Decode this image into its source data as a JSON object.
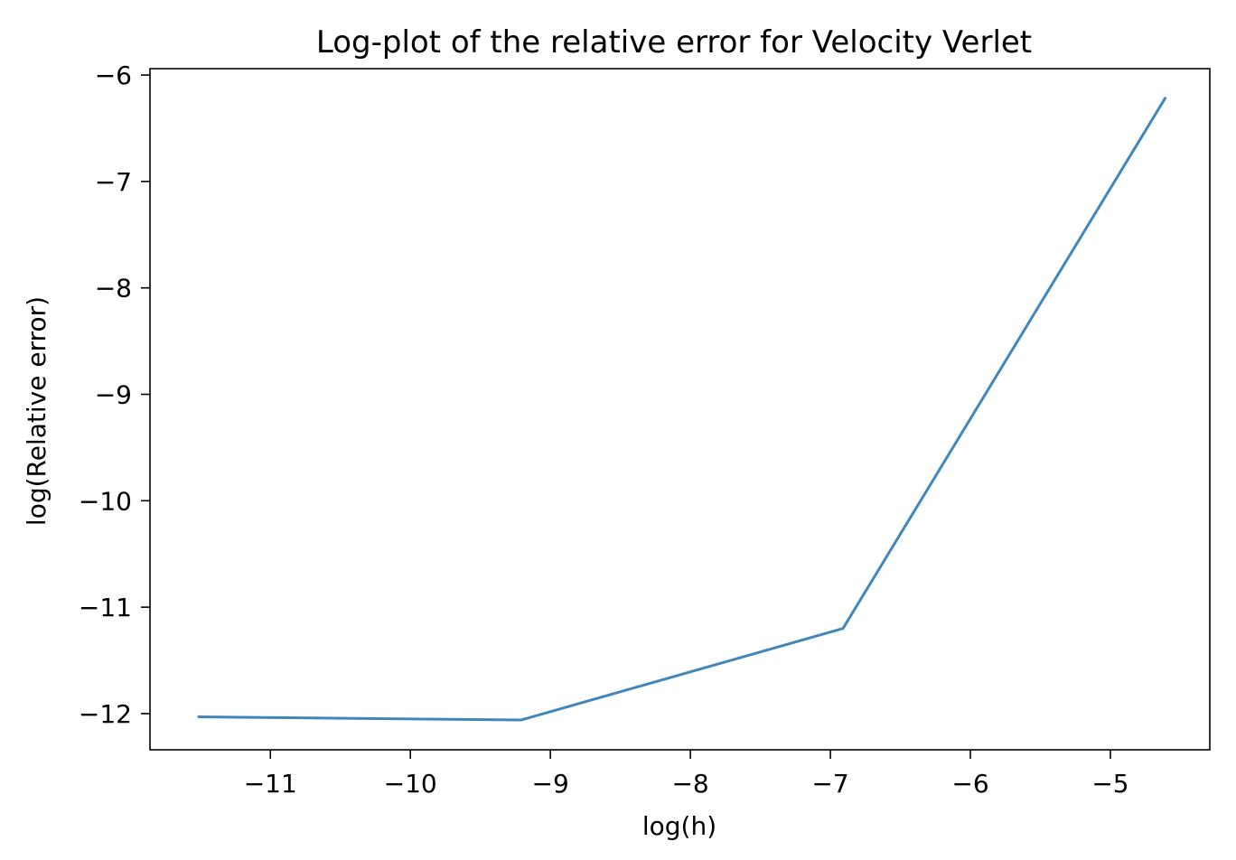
{
  "chart_data": {
    "type": "line",
    "title": "Log-plot of the relative error for Velocity Verlet",
    "xlabel": "log(h)",
    "ylabel": "log(Relative error)",
    "xlim": [
      -11.86,
      -4.29
    ],
    "ylim": [
      -12.34,
      -5.94
    ],
    "xticks": [
      -11,
      -10,
      -9,
      -8,
      -7,
      -6,
      -5
    ],
    "yticks": [
      -12,
      -11,
      -10,
      -9,
      -8,
      -7,
      -6
    ],
    "xtick_labels": [
      "−11",
      "−10",
      "−9",
      "−8",
      "−7",
      "−6",
      "−5"
    ],
    "ytick_labels": [
      "−12",
      "−11",
      "−10",
      "−9",
      "−8",
      "−7",
      "−6"
    ],
    "grid": false,
    "series": [
      {
        "color": "#4287bc",
        "x": [
          -11.51,
          -9.21,
          -6.91,
          -4.61
        ],
        "y": [
          -12.03,
          -12.06,
          -11.2,
          -6.22
        ]
      }
    ]
  }
}
